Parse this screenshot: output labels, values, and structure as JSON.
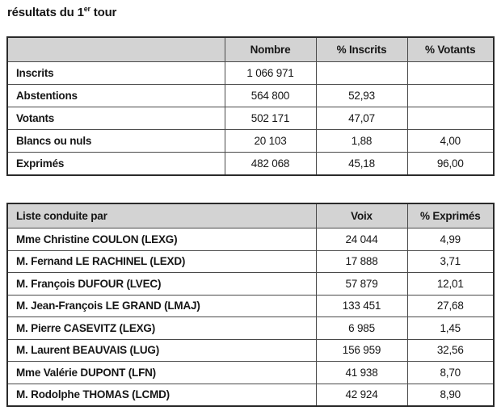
{
  "title": {
    "main": "résultats du 1",
    "superscript": "er",
    "rest": " tour"
  },
  "colors": {
    "header_bg": "#d3d3d3",
    "border_outer": "#2a2a2a",
    "border_inner": "#4a4a4a",
    "text": "#161616"
  },
  "turnout_table": {
    "col_headers": [
      "Nombre",
      "% Inscrits",
      "% Votants"
    ],
    "rows": [
      {
        "label": "Inscrits",
        "nombre": "1 066 971",
        "pct_inscrits": "",
        "pct_votants": ""
      },
      {
        "label": "Abstentions",
        "nombre": "564 800",
        "pct_inscrits": "52,93",
        "pct_votants": ""
      },
      {
        "label": "Votants",
        "nombre": "502 171",
        "pct_inscrits": "47,07",
        "pct_votants": ""
      },
      {
        "label": "Blancs ou nuls",
        "nombre": "20 103",
        "pct_inscrits": "1,88",
        "pct_votants": "4,00"
      },
      {
        "label": "Exprimés",
        "nombre": "482 068",
        "pct_inscrits": "45,18",
        "pct_votants": "96,00"
      }
    ]
  },
  "results_table": {
    "col_headers": [
      "Liste conduite par",
      "Voix",
      "% Exprimés"
    ],
    "rows": [
      {
        "label": "Mme Christine COULON (LEXG)",
        "voix": "24 044",
        "pct": "4,99"
      },
      {
        "label": "M. Fernand LE RACHINEL (LEXD)",
        "voix": "17 888",
        "pct": "3,71"
      },
      {
        "label": "M. François DUFOUR (LVEC)",
        "voix": "57 879",
        "pct": "12,01"
      },
      {
        "label": "M. Jean-François LE GRAND (LMAJ)",
        "voix": "133 451",
        "pct": "27,68"
      },
      {
        "label": "M. Pierre CASEVITZ (LEXG)",
        "voix": "6 985",
        "pct": "1,45"
      },
      {
        "label": "M. Laurent BEAUVAIS (LUG)",
        "voix": "156 959",
        "pct": "32,56"
      },
      {
        "label": "Mme Valérie DUPONT (LFN)",
        "voix": "41 938",
        "pct": "8,70"
      },
      {
        "label": "M. Rodolphe THOMAS (LCMD)",
        "voix": "42 924",
        "pct": "8,90"
      }
    ]
  }
}
